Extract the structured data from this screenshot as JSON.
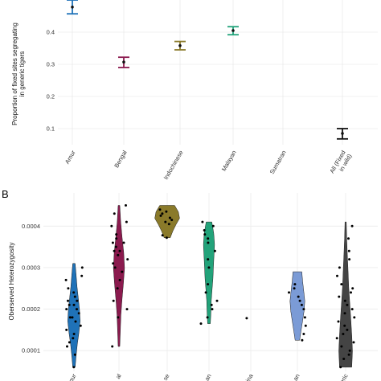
{
  "chart_data": [
    {
      "type": "errorbar",
      "panel_label": "",
      "ylabel": "Proportion of fixed sites segregating\nin generic tigers",
      "ylim": [
        0.05,
        0.5
      ],
      "yticks": [
        0.1,
        0.2,
        0.3,
        0.4
      ],
      "ytick_labels": [
        "0.1",
        "0.2",
        "0.3",
        "0.4"
      ],
      "categories": [
        "Amur",
        "Bengal",
        "Indochinese",
        "Malayan",
        "Sumatran",
        "All (Fixed\nin wild)"
      ],
      "points": [
        {
          "category": "Amur",
          "mean": 0.478,
          "low": 0.457,
          "high": 0.5,
          "color": "#1f72b8"
        },
        {
          "category": "Bengal",
          "mean": 0.307,
          "low": 0.29,
          "high": 0.322,
          "color": "#8b1a4e"
        },
        {
          "category": "Indochinese",
          "mean": 0.358,
          "low": 0.345,
          "high": 0.371,
          "color": "#8a7a2a"
        },
        {
          "category": "Malayan",
          "mean": 0.405,
          "low": 0.392,
          "high": 0.417,
          "color": "#22a37a"
        },
        {
          "category": "All (Fixed\nin wild)",
          "mean": 0.085,
          "low": 0.068,
          "high": 0.1,
          "color": "#111111"
        }
      ],
      "grid": true
    },
    {
      "type": "violin",
      "panel_label": "B",
      "ylabel": "Oberserved Heterozygosity",
      "ylim": [
        5e-05,
        0.00048
      ],
      "yticks": [
        0.0001,
        0.0002,
        0.0003,
        0.0004
      ],
      "ytick_labels": [
        "0.0001",
        "0.0002",
        "0.0003",
        "0.0004"
      ],
      "tick_labels_visible": [
        "mur",
        "al",
        "se",
        "an",
        "ina",
        "an",
        "eric"
      ],
      "groups": [
        {
          "color": "#1f72b8",
          "min": 6e-05,
          "max": 0.00031,
          "shape": [
            0.2,
            0.35,
            0.55,
            0.8,
            1.0,
            0.9,
            0.7,
            0.5,
            0.35,
            0.2
          ],
          "half_width": 0.5,
          "points": [
            6e-05,
            9e-05,
            0.00011,
            0.00012,
            0.00013,
            0.00014,
            0.00015,
            0.00016,
            0.00017,
            0.00018,
            0.00018,
            0.00019,
            0.0002,
            0.0002,
            0.00021,
            0.00021,
            0.00022,
            0.00022,
            0.00023,
            0.00024,
            0.00025,
            0.00027,
            0.00028,
            0.0003
          ]
        },
        {
          "color": "#8b1a4e",
          "min": 0.00011,
          "max": 0.00045,
          "shape": [
            0.15,
            0.25,
            0.35,
            0.55,
            0.8,
            1.0,
            0.85,
            0.55,
            0.3,
            0.15
          ],
          "half_width": 0.45,
          "points": [
            0.00011,
            0.00018,
            0.0002,
            0.00022,
            0.00025,
            0.00027,
            0.00029,
            0.0003,
            0.00031,
            0.00032,
            0.00033,
            0.00034,
            0.00034,
            0.00035,
            0.00036,
            0.00036,
            0.00037,
            0.00038,
            0.0004,
            0.00041,
            0.00043,
            0.00045
          ]
        },
        {
          "color": "#8a7a2a",
          "min": 0.000372,
          "max": 0.00045,
          "shape": [
            0.25,
            0.45,
            0.7,
            1.0,
            0.9,
            0.6
          ],
          "half_width": 1.0,
          "points": [
            0.000372,
            0.000378,
            0.000405,
            0.00041,
            0.000415,
            0.00042,
            0.000425,
            0.00043,
            0.000435,
            0.00044
          ]
        },
        {
          "color": "#22a37a",
          "min": 0.000165,
          "max": 0.00041,
          "shape": [
            0.25,
            0.35,
            0.4,
            0.55,
            0.7,
            0.8,
            0.9,
            1.0,
            0.85,
            0.5
          ],
          "half_width": 0.45,
          "points": [
            0.000165,
            0.00018,
            0.0002,
            0.00021,
            0.00022,
            0.00024,
            0.00026,
            0.0003,
            0.00032,
            0.00034,
            0.00036,
            0.00037,
            0.00038,
            0.00039,
            0.0004,
            0.00041
          ]
        },
        {
          "color": "#cccccc",
          "min": 0.000178,
          "max": 0.000178,
          "shape": [],
          "half_width": 0,
          "points": [
            0.000178
          ]
        },
        {
          "color": "#7b9bd6",
          "min": 0.000125,
          "max": 0.00029,
          "shape": [
            0.3,
            0.5,
            0.7,
            0.9,
            1.0,
            0.85,
            0.7,
            0.6
          ],
          "half_width": 0.6,
          "points": [
            0.000125,
            0.00014,
            0.00016,
            0.00018,
            0.0002,
            0.00021,
            0.00022,
            0.00023,
            0.00024,
            0.00025,
            0.00026
          ]
        },
        {
          "color": "#444444",
          "min": 6e-05,
          "max": 0.00041,
          "shape": [
            0.9,
            1.0,
            0.9,
            0.75,
            0.6,
            0.45,
            0.35,
            0.25,
            0.15,
            0.1
          ],
          "half_width": 0.55,
          "points": [
            6e-05,
            8e-05,
            9e-05,
            0.0001,
            0.00011,
            0.00012,
            0.00013,
            0.00014,
            0.00015,
            0.00016,
            0.00017,
            0.00018,
            0.00019,
            0.0002,
            0.00021,
            0.00022,
            0.00023,
            0.00024,
            0.00025,
            0.00026,
            0.00028,
            0.0003,
            0.00032,
            0.00034,
            0.00037,
            0.0004
          ]
        }
      ],
      "grid": true
    }
  ]
}
